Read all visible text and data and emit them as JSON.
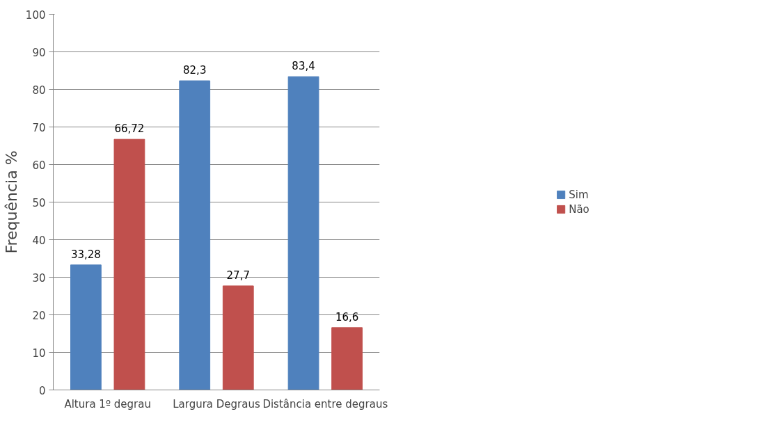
{
  "chart_data": {
    "type": "bar",
    "ylabel": "Frequência %",
    "categories": [
      "Altura 1º degrau",
      "Largura Degraus",
      "Distância entre degraus"
    ],
    "series": [
      {
        "name": "Sim",
        "color": "#4f81bd",
        "values": [
          33.28,
          82.3,
          83.4
        ],
        "value_labels": [
          "33,28",
          "82,3",
          "83,4"
        ]
      },
      {
        "name": "Não",
        "color": "#c0504d",
        "values": [
          66.72,
          27.7,
          16.6
        ],
        "value_labels": [
          "66,72",
          "27,7",
          "16,6"
        ]
      }
    ],
    "ylim": [
      0,
      100
    ],
    "yticks": [
      0,
      10,
      20,
      30,
      40,
      50,
      60,
      70,
      80,
      90,
      100
    ],
    "grid": "y",
    "legend": "right"
  }
}
